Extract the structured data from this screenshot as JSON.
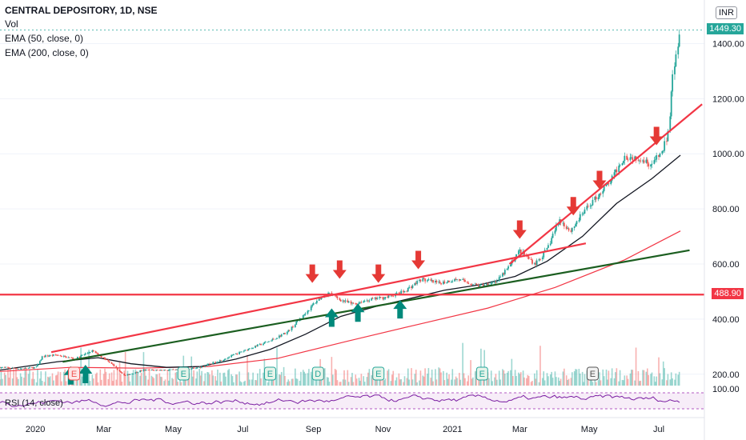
{
  "header": {
    "title": "CENTRAL DEPOSITORY, 1D, NSE",
    "indicators": [
      "Vol",
      "EMA (50, close, 0)",
      "EMA (200, close, 0)"
    ],
    "currency": "INR",
    "rsi_label": "RSI (14, close)"
  },
  "colors": {
    "up": "#26a69a",
    "down": "#ef5350",
    "ema50": "#131722",
    "ema200": "#f23645",
    "trend_red": "#f23645",
    "trend_green": "#1b5e20",
    "support": "#f23645",
    "arrow_down": "#e53935",
    "arrow_up": "#00897b",
    "rsi": "#7b1fa2"
  },
  "chart_data": {
    "type": "candlestick",
    "y_axis": {
      "range": [
        150,
        1500
      ],
      "ticks": [
        "200.00",
        "400.00",
        "600.00",
        "800.00",
        "1000.00",
        "1200.00",
        "1400.00"
      ]
    },
    "x_axis": {
      "ticks": [
        "2020",
        "Mar",
        "May",
        "Jul",
        "Sep",
        "Nov",
        "2021",
        "Mar",
        "May",
        "Jul"
      ],
      "start": "2019-12-01",
      "end": "2021-08-10"
    },
    "last_price": "1449.30",
    "support_level": "488.90",
    "support_value": 488.9,
    "price_path": [
      [
        "2019-12-01",
        225
      ],
      [
        "2019-12-20",
        220
      ],
      [
        "2020-01-02",
        225
      ],
      [
        "2020-01-08",
        265
      ],
      [
        "2020-01-20",
        270
      ],
      [
        "2020-02-05",
        255
      ],
      [
        "2020-02-20",
        285
      ],
      [
        "2020-03-05",
        250
      ],
      [
        "2020-03-20",
        195
      ],
      [
        "2020-04-05",
        215
      ],
      [
        "2020-05-05",
        215
      ],
      [
        "2020-05-25",
        225
      ],
      [
        "2020-06-15",
        255
      ],
      [
        "2020-07-05",
        290
      ],
      [
        "2020-07-25",
        320
      ],
      [
        "2020-08-10",
        355
      ],
      [
        "2020-08-25",
        420
      ],
      [
        "2020-09-05",
        470
      ],
      [
        "2020-09-15",
        495
      ],
      [
        "2020-09-25",
        470
      ],
      [
        "2020-10-05",
        455
      ],
      [
        "2020-10-20",
        470
      ],
      [
        "2020-11-05",
        480
      ],
      [
        "2020-11-20",
        500
      ],
      [
        "2020-12-05",
        545
      ],
      [
        "2020-12-20",
        530
      ],
      [
        "2021-01-05",
        545
      ],
      [
        "2021-01-25",
        520
      ],
      [
        "2021-02-10",
        540
      ],
      [
        "2021-02-20",
        590
      ],
      [
        "2021-03-01",
        650
      ],
      [
        "2021-03-15",
        600
      ],
      [
        "2021-03-25",
        650
      ],
      [
        "2021-04-05",
        760
      ],
      [
        "2021-04-15",
        720
      ],
      [
        "2021-04-25",
        780
      ],
      [
        "2021-05-05",
        830
      ],
      [
        "2021-05-20",
        900
      ],
      [
        "2021-06-01",
        990
      ],
      [
        "2021-06-15",
        985
      ],
      [
        "2021-06-25",
        960
      ],
      [
        "2021-07-05",
        1010
      ],
      [
        "2021-07-10",
        1080
      ],
      [
        "2021-07-13",
        1280
      ],
      [
        "2021-07-20",
        1449.3
      ]
    ],
    "ema50": [
      [
        "2019-12-01",
        215
      ],
      [
        "2020-01-20",
        245
      ],
      [
        "2020-02-25",
        260
      ],
      [
        "2020-03-25",
        238
      ],
      [
        "2020-04-25",
        225
      ],
      [
        "2020-05-25",
        228
      ],
      [
        "2020-06-25",
        255
      ],
      [
        "2020-07-25",
        290
      ],
      [
        "2020-08-25",
        345
      ],
      [
        "2020-09-25",
        410
      ],
      [
        "2020-10-25",
        445
      ],
      [
        "2020-11-25",
        475
      ],
      [
        "2020-12-25",
        505
      ],
      [
        "2021-01-25",
        525
      ],
      [
        "2021-02-25",
        555
      ],
      [
        "2021-03-25",
        610
      ],
      [
        "2021-04-25",
        700
      ],
      [
        "2021-05-25",
        820
      ],
      [
        "2021-06-25",
        910
      ],
      [
        "2021-07-20",
        995
      ]
    ],
    "ema200": [
      [
        "2019-12-01",
        210
      ],
      [
        "2020-02-01",
        225
      ],
      [
        "2020-04-01",
        222
      ],
      [
        "2020-06-01",
        228
      ],
      [
        "2020-08-01",
        258
      ],
      [
        "2020-10-01",
        320
      ],
      [
        "2020-12-01",
        380
      ],
      [
        "2021-02-01",
        440
      ],
      [
        "2021-04-01",
        515
      ],
      [
        "2021-06-01",
        615
      ],
      [
        "2021-07-20",
        720
      ]
    ],
    "trendlines": [
      {
        "kind": "resistance",
        "from": [
          "2020-01-15",
          280
        ],
        "to": [
          "2021-04-28",
          675
        ]
      },
      {
        "kind": "uptrend",
        "from": [
          "2020-01-25",
          245
        ],
        "to": [
          "2021-07-28",
          650
        ]
      },
      {
        "kind": "channel",
        "from": [
          "2021-02-20",
          600
        ],
        "to": [
          "2021-08-08",
          1180
        ]
      }
    ],
    "down_arrows": [
      [
        "2020-08-31",
        540
      ],
      [
        "2020-09-24",
        555
      ],
      [
        "2020-10-28",
        540
      ],
      [
        "2020-12-02",
        590
      ],
      [
        "2021-03-01",
        700
      ],
      [
        "2021-04-17",
        785
      ],
      [
        "2021-05-10",
        880
      ],
      [
        "2021-06-29",
        1040
      ]
    ],
    "up_arrows": [
      [
        "2020-02-01",
        200
      ],
      [
        "2020-02-14",
        205
      ],
      [
        "2020-09-17",
        410
      ],
      [
        "2020-10-10",
        428
      ],
      [
        "2020-11-16",
        440
      ]
    ],
    "events": [
      {
        "date": "2020-02-04",
        "label": "E",
        "style": "red"
      },
      {
        "date": "2020-05-10",
        "label": "E",
        "style": "green"
      },
      {
        "date": "2020-07-25",
        "label": "E",
        "style": "green"
      },
      {
        "date": "2020-09-05",
        "label": "D",
        "style": "green"
      },
      {
        "date": "2020-10-28",
        "label": "E",
        "style": "green"
      },
      {
        "date": "2021-01-27",
        "label": "E",
        "style": "green"
      },
      {
        "date": "2021-05-04",
        "label": "E",
        "style": "gray"
      }
    ],
    "rsi": {
      "top_label": "100.00"
    }
  }
}
